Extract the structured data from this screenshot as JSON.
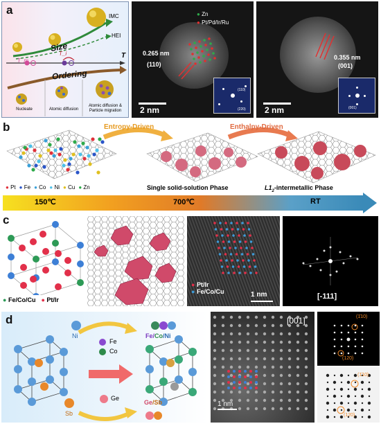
{
  "panel_a": {
    "letter": "a",
    "diagram": {
      "size_label": "Size",
      "imc_label": "IMC",
      "hei_label": "HEI",
      "axis_label": "T",
      "tm_label": "T_m",
      "ti_label": "T_i",
      "ordering_label": "Ordering",
      "stages": [
        "Nucleate",
        "Atomic diffusion",
        "Atomic diffusion & Particle migration"
      ]
    },
    "tem1": {
      "legend": [
        "Zn",
        "Pt/Pd/Ir/Ru"
      ],
      "d_spacing": "0.265 nm",
      "plane": "(110)",
      "scale_bar": "2 nm",
      "fft_labels": [
        "(110)",
        "(220)"
      ]
    },
    "tem2": {
      "d_spacing": "0.355 nm",
      "plane": "(001)",
      "scale_bar": "2 nm",
      "fft_labels": [
        "(001)"
      ]
    }
  },
  "panel_b": {
    "letter": "b",
    "arrow1": "Entropy-Driven",
    "arrow2": "Enthalpy-Driven",
    "legend": [
      {
        "label": "Pt",
        "color": "#e0303a"
      },
      {
        "label": "Fe",
        "color": "#2a55c8"
      },
      {
        "label": "Co",
        "color": "#3aa0d8"
      },
      {
        "label": "Ni",
        "color": "#4dc0e8"
      },
      {
        "label": "Cu",
        "color": "#e0c020"
      },
      {
        "label": "Zn",
        "color": "#2eaa4a"
      }
    ],
    "phase1": "Single solid-solution Phase",
    "phase2_prefix": "L1",
    "phase2_sub": "2",
    "phase2_suffix": "-intermetallic Phase",
    "temps": [
      "150℃",
      "700℃",
      "RT"
    ]
  },
  "panel_c": {
    "letter": "c",
    "legend": [
      "Fe/Co/Cu",
      "Pt/Ir"
    ],
    "tem_legend": [
      "Pt/Ir",
      "Fe/Co/Cu"
    ],
    "scale_bar": "1 nm",
    "zone_axis": "[-111]"
  },
  "panel_d": {
    "letter": "d",
    "labels": {
      "ni": "Ni",
      "fe": "Fe",
      "co": "Co",
      "fe_co_ni_1": "Fe/",
      "fe_co_ni_2": "Co",
      "fe_co_ni_3": "/Ni",
      "ge": "Ge",
      "sb": "Sb",
      "ge_sb_1": "Ge",
      "ge_sb_2": "/Sb"
    },
    "zone_axis": "[001]",
    "scale_bar": "1 nm",
    "fft_labels": [
      "(1̄10)",
      "(120)"
    ],
    "sim_labels": [
      "(1̄10)",
      "(120)"
    ]
  },
  "colors": {
    "red_atom": "#e2304a",
    "blue_atom": "#3d7fd6",
    "green_atom": "#2d9a56",
    "gold": "#d8a820",
    "orange_arrow": "#f08a2a"
  }
}
